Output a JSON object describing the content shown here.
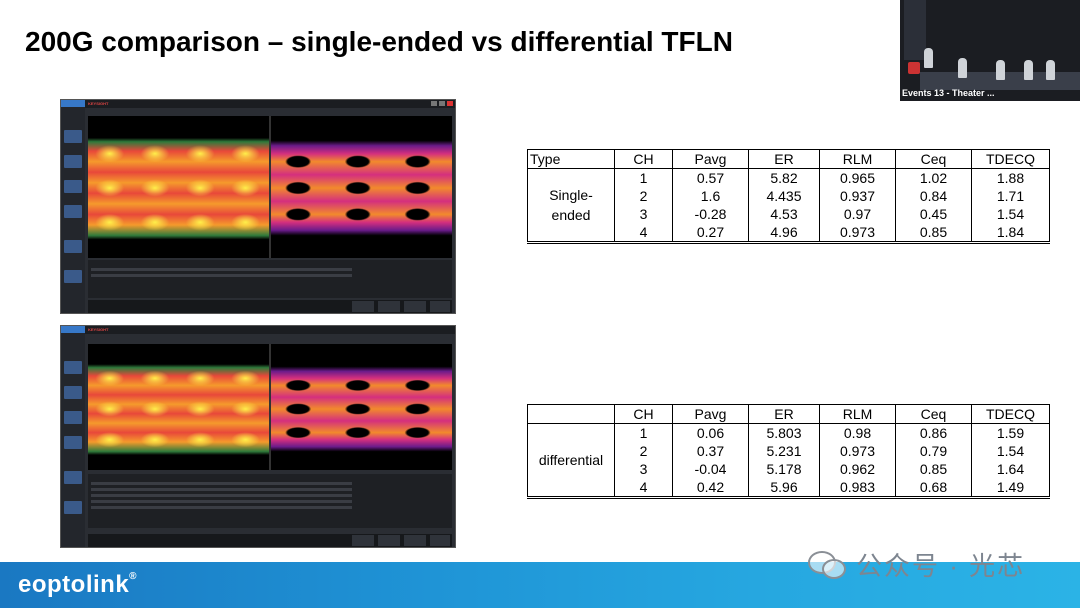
{
  "slide": {
    "title": "200G comparison – single-ended vs differential TFLN"
  },
  "webcam": {
    "caption": "Events 13 - Theater ..."
  },
  "scope_screens": {
    "brand": "KEYSIGHT"
  },
  "table_single_ended": {
    "headers": [
      "Type",
      "CH",
      "Pavg",
      "ER",
      "RLM",
      "Ceq",
      "TDECQ"
    ],
    "group_label": "Single-\nended",
    "rows": [
      {
        "ch": "1",
        "pavg": "0.57",
        "er": "5.82",
        "rlm": "0.965",
        "ceq": "1.02",
        "tdecq": "1.88"
      },
      {
        "ch": "2",
        "pavg": "1.6",
        "er": "4.435",
        "rlm": "0.937",
        "ceq": "0.84",
        "tdecq": "1.71"
      },
      {
        "ch": "3",
        "pavg": "-0.28",
        "er": "4.53",
        "rlm": "0.97",
        "ceq": "0.45",
        "tdecq": "1.54"
      },
      {
        "ch": "4",
        "pavg": "0.27",
        "er": "4.96",
        "rlm": "0.973",
        "ceq": "0.85",
        "tdecq": "1.84"
      }
    ]
  },
  "table_differential": {
    "headers": [
      "",
      "CH",
      "Pavg",
      "ER",
      "RLM",
      "Ceq",
      "TDECQ"
    ],
    "group_label": "differential",
    "rows": [
      {
        "ch": "1",
        "pavg": "0.06",
        "er": "5.803",
        "rlm": "0.98",
        "ceq": "0.86",
        "tdecq": "1.59"
      },
      {
        "ch": "2",
        "pavg": "0.37",
        "er": "5.231",
        "rlm": "0.973",
        "ceq": "0.79",
        "tdecq": "1.54"
      },
      {
        "ch": "3",
        "pavg": "-0.04",
        "er": "5.178",
        "rlm": "0.962",
        "ceq": "0.85",
        "tdecq": "1.64"
      },
      {
        "ch": "4",
        "pavg": "0.42",
        "er": "5.96",
        "rlm": "0.983",
        "ceq": "0.68",
        "tdecq": "1.49"
      }
    ]
  },
  "footer": {
    "logo": "eoptolink",
    "logo_mark": "®",
    "watermark": "公众号 · 光芯",
    "accent": "#1f94d6"
  }
}
